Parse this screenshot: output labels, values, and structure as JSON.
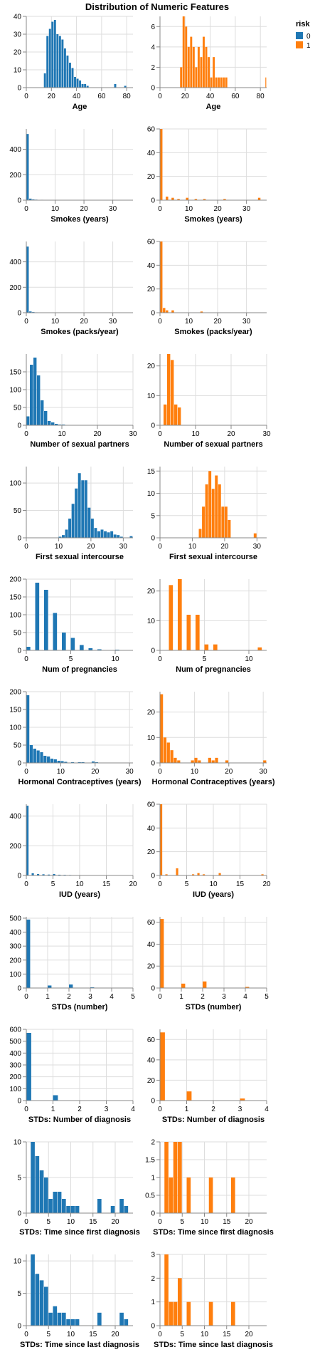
{
  "title": "Distribution of Numeric Features",
  "legend": {
    "title": "risk",
    "items": [
      {
        "label": "0",
        "color": "#1f77b4"
      },
      {
        "label": "1",
        "color": "#ff7f0e"
      }
    ]
  },
  "chart_data": [
    {
      "type": "bar",
      "feature": "Age",
      "risk": "0",
      "xlabel": "Age",
      "xlim": [
        0,
        85
      ],
      "xticks": [
        0,
        20,
        40,
        60,
        80
      ],
      "ylim": [
        0,
        40
      ],
      "yticks": [
        0,
        10,
        20,
        30,
        40
      ],
      "bin_width": 2,
      "x": [
        14,
        16,
        18,
        20,
        22,
        24,
        26,
        28,
        30,
        32,
        34,
        36,
        38,
        40,
        42,
        44,
        46,
        48,
        70,
        78
      ],
      "values": [
        8,
        29,
        33,
        37,
        38,
        30,
        29,
        27,
        22,
        18,
        14,
        11,
        6,
        5,
        4,
        2,
        2,
        1,
        2,
        1
      ]
    },
    {
      "type": "bar",
      "feature": "Age",
      "risk": "1",
      "xlabel": "Age",
      "xlim": [
        0,
        85
      ],
      "xticks": [
        0,
        20,
        40,
        60,
        80
      ],
      "ylim": [
        0,
        7
      ],
      "yticks": [
        0,
        2,
        4,
        6
      ],
      "bin_width": 2,
      "x": [
        16,
        18,
        20,
        22,
        24,
        26,
        28,
        30,
        32,
        34,
        36,
        38,
        40,
        42,
        44,
        46,
        48,
        50,
        52,
        84
      ],
      "values": [
        2,
        7,
        6,
        4,
        5,
        4,
        2,
        4,
        3,
        5,
        4,
        3,
        1,
        3,
        1,
        1,
        1,
        1,
        1,
        1
      ]
    },
    {
      "type": "bar",
      "feature": "Smokes (years)",
      "risk": "0",
      "xlabel": "Smokes (years)",
      "xlim": [
        0,
        37
      ],
      "xticks": [
        0,
        10,
        20,
        30
      ],
      "ylim": [
        0,
        560
      ],
      "yticks": [
        0,
        200,
        400
      ],
      "bin_width": 1,
      "x": [
        0,
        1,
        2,
        3,
        5,
        10
      ],
      "values": [
        520,
        12,
        6,
        4,
        3,
        2
      ]
    },
    {
      "type": "bar",
      "feature": "Smokes (years)",
      "risk": "1",
      "xlabel": "Smokes (years)",
      "xlim": [
        0,
        37
      ],
      "xticks": [
        0,
        10,
        20,
        30
      ],
      "ylim": [
        0,
        60
      ],
      "yticks": [
        0,
        20,
        40,
        60
      ],
      "bin_width": 1,
      "x": [
        0,
        2,
        4,
        6,
        9,
        12,
        15,
        22,
        34
      ],
      "values": [
        60,
        3,
        2,
        1,
        2,
        1,
        1,
        1,
        2
      ]
    },
    {
      "type": "bar",
      "feature": "Smokes (packs/year)",
      "risk": "0",
      "xlabel": "Smokes (packs/year)",
      "xlim": [
        0,
        37
      ],
      "xticks": [
        0,
        10,
        20,
        30
      ],
      "ylim": [
        0,
        560
      ],
      "yticks": [
        0,
        200,
        400
      ],
      "bin_width": 1,
      "x": [
        0,
        1,
        2,
        3,
        5
      ],
      "values": [
        520,
        10,
        5,
        3,
        2
      ]
    },
    {
      "type": "bar",
      "feature": "Smokes (packs/year)",
      "risk": "1",
      "xlabel": "Smokes (packs/year)",
      "xlim": [
        0,
        37
      ],
      "xticks": [
        0,
        10,
        20,
        30
      ],
      "ylim": [
        0,
        60
      ],
      "yticks": [
        0,
        20,
        40,
        60
      ],
      "bin_width": 1,
      "x": [
        0,
        1,
        2,
        4,
        14
      ],
      "values": [
        60,
        4,
        2,
        2,
        1
      ]
    },
    {
      "type": "bar",
      "feature": "Number of sexual partners",
      "risk": "0",
      "xlabel": "Number of sexual partners",
      "xlim": [
        0,
        30
      ],
      "xticks": [
        0,
        10,
        20,
        30
      ],
      "ylim": [
        0,
        200
      ],
      "yticks": [
        0,
        50,
        100,
        150
      ],
      "bin_width": 1,
      "x": [
        0,
        1,
        2,
        3,
        4,
        5,
        6,
        7,
        8,
        9,
        10,
        14,
        28
      ],
      "values": [
        25,
        170,
        190,
        140,
        70,
        40,
        12,
        8,
        4,
        2,
        2,
        1,
        1
      ]
    },
    {
      "type": "bar",
      "feature": "Number of sexual partners",
      "risk": "1",
      "xlabel": "Number of sexual partners",
      "xlim": [
        0,
        30
      ],
      "xticks": [
        0,
        10,
        20,
        30
      ],
      "ylim": [
        0,
        24
      ],
      "yticks": [
        0,
        10,
        20
      ],
      "bin_width": 1,
      "x": [
        1,
        2,
        3,
        4,
        5
      ],
      "values": [
        7,
        24,
        22,
        7,
        6
      ]
    },
    {
      "type": "bar",
      "feature": "First sexual intercourse",
      "risk": "0",
      "xlabel": "First sexual intercourse",
      "xlim": [
        0,
        33
      ],
      "xticks": [
        0,
        10,
        20,
        30
      ],
      "ylim": [
        0,
        130
      ],
      "yticks": [
        0,
        50,
        100
      ],
      "bin_width": 1,
      "x": [
        10,
        11,
        12,
        13,
        14,
        15,
        16,
        17,
        18,
        19,
        20,
        21,
        22,
        23,
        24,
        25,
        26,
        27,
        28,
        29,
        32
      ],
      "values": [
        2,
        5,
        15,
        35,
        62,
        90,
        118,
        105,
        105,
        55,
        35,
        18,
        12,
        15,
        12,
        10,
        12,
        6,
        5,
        2,
        3
      ]
    },
    {
      "type": "bar",
      "feature": "First sexual intercourse",
      "risk": "1",
      "xlabel": "First sexual intercourse",
      "xlim": [
        0,
        33
      ],
      "xticks": [
        0,
        10,
        20,
        30
      ],
      "ylim": [
        0,
        16
      ],
      "yticks": [
        0,
        5,
        10,
        15
      ],
      "bin_width": 1,
      "x": [
        12,
        13,
        14,
        15,
        16,
        17,
        18,
        19,
        20,
        21,
        29
      ],
      "values": [
        2,
        7,
        12,
        15,
        11,
        14,
        12,
        7,
        7,
        4,
        1
      ]
    },
    {
      "type": "bar",
      "feature": "Num of pregnancies",
      "risk": "0",
      "xlabel": "Num of pregnancies",
      "xlim": [
        0,
        12
      ],
      "xticks": [
        0,
        5,
        10
      ],
      "ylim": [
        0,
        200
      ],
      "yticks": [
        0,
        50,
        100,
        150,
        200
      ],
      "bin_width": 0.5,
      "x": [
        0,
        1,
        2,
        3,
        4,
        5,
        6,
        7,
        8,
        10
      ],
      "values": [
        10,
        190,
        170,
        105,
        50,
        35,
        15,
        6,
        3,
        2
      ]
    },
    {
      "type": "bar",
      "feature": "Num of pregnancies",
      "risk": "1",
      "xlabel": "Num of pregnancies",
      "xlim": [
        0,
        12
      ],
      "xticks": [
        0,
        5,
        10
      ],
      "ylim": [
        0,
        24
      ],
      "yticks": [
        0,
        10,
        20
      ],
      "bin_width": 0.5,
      "x": [
        1,
        2,
        3,
        4,
        5,
        6,
        11
      ],
      "values": [
        22,
        24,
        12,
        12,
        2,
        2,
        1
      ]
    },
    {
      "type": "bar",
      "feature": "Hormonal Contraceptives (years)",
      "risk": "0",
      "xlabel": "Hormonal Contraceptives (years)",
      "xlim": [
        0,
        31
      ],
      "xticks": [
        0,
        10,
        20,
        30
      ],
      "ylim": [
        0,
        200
      ],
      "yticks": [
        0,
        50,
        100,
        150,
        200
      ],
      "bin_width": 1,
      "x": [
        0,
        1,
        2,
        3,
        4,
        5,
        6,
        7,
        8,
        9,
        10,
        11,
        13,
        15,
        16,
        19,
        20,
        22,
        29
      ],
      "values": [
        190,
        50,
        40,
        35,
        30,
        20,
        18,
        12,
        10,
        6,
        5,
        3,
        2,
        2,
        2,
        4,
        2,
        1,
        1
      ]
    },
    {
      "type": "bar",
      "feature": "Hormonal Contraceptives (years)",
      "risk": "1",
      "xlabel": "Hormonal Contraceptives (years)",
      "xlim": [
        0,
        31
      ],
      "xticks": [
        0,
        10,
        20,
        30
      ],
      "ylim": [
        0,
        28
      ],
      "yticks": [
        0,
        10,
        20
      ],
      "bin_width": 1,
      "x": [
        0,
        1,
        2,
        3,
        4,
        5,
        9,
        10,
        11,
        14,
        15,
        16,
        19,
        30
      ],
      "values": [
        27,
        10,
        8,
        5,
        2,
        1,
        1,
        2,
        1,
        2,
        1,
        2,
        1,
        1
      ]
    },
    {
      "type": "bar",
      "feature": "IUD (years)",
      "risk": "0",
      "xlabel": "IUD (years)",
      "xlim": [
        0,
        20
      ],
      "xticks": [
        0,
        5,
        10,
        15,
        20
      ],
      "ylim": [
        0,
        480
      ],
      "yticks": [
        0,
        200,
        400
      ],
      "bin_width": 0.5,
      "x": [
        0,
        1,
        2,
        3,
        4,
        5,
        6,
        7,
        8,
        9,
        10,
        11,
        12,
        19
      ],
      "values": [
        470,
        15,
        10,
        8,
        6,
        10,
        5,
        4,
        3,
        2,
        2,
        1,
        1,
        1
      ]
    },
    {
      "type": "bar",
      "feature": "IUD (years)",
      "risk": "1",
      "xlabel": "IUD (years)",
      "xlim": [
        0,
        20
      ],
      "xticks": [
        0,
        5,
        10,
        15,
        20
      ],
      "ylim": [
        0,
        60
      ],
      "yticks": [
        0,
        20,
        40,
        60
      ],
      "bin_width": 0.5,
      "x": [
        0,
        1,
        3,
        6,
        7,
        8,
        11,
        19
      ],
      "values": [
        60,
        1,
        6,
        1,
        2,
        1,
        2,
        1
      ]
    },
    {
      "type": "bar",
      "feature": "STDs (number)",
      "risk": "0",
      "xlabel": "STDs (number)",
      "xlim": [
        0,
        5
      ],
      "xticks": [
        0,
        1,
        2,
        3,
        4,
        5
      ],
      "ylim": [
        0,
        510
      ],
      "yticks": [
        0,
        100,
        200,
        300,
        400,
        500
      ],
      "bin_width": 0.2,
      "x": [
        0,
        1,
        2,
        3
      ],
      "values": [
        490,
        18,
        25,
        5
      ]
    },
    {
      "type": "bar",
      "feature": "STDs (number)",
      "risk": "1",
      "xlabel": "STDs (number)",
      "xlim": [
        0,
        5
      ],
      "xticks": [
        0,
        1,
        2,
        3,
        4,
        5
      ],
      "ylim": [
        0,
        65
      ],
      "yticks": [
        0,
        20,
        40,
        60
      ],
      "bin_width": 0.2,
      "x": [
        0,
        1,
        2,
        4
      ],
      "values": [
        63,
        4,
        6,
        1
      ]
    },
    {
      "type": "bar",
      "feature": "STDs: Number of diagnosis",
      "risk": "0",
      "xlabel": "STDs: Number of diagnosis",
      "xlim": [
        0,
        4
      ],
      "xticks": [
        0,
        1,
        2,
        3,
        4
      ],
      "ylim": [
        0,
        600
      ],
      "yticks": [
        0,
        100,
        200,
        300,
        400,
        500,
        600
      ],
      "bin_width": 0.2,
      "x": [
        0,
        1
      ],
      "values": [
        570,
        45
      ]
    },
    {
      "type": "bar",
      "feature": "STDs: Number of diagnosis",
      "risk": "1",
      "xlabel": "STDs: Number of diagnosis",
      "xlim": [
        0,
        4
      ],
      "xticks": [
        0,
        1,
        2,
        3,
        4
      ],
      "ylim": [
        0,
        70
      ],
      "yticks": [
        0,
        20,
        40,
        60
      ],
      "bin_width": 0.2,
      "x": [
        0,
        1,
        3
      ],
      "values": [
        67,
        9,
        2
      ]
    },
    {
      "type": "bar",
      "feature": "STDs: Time since first diagnosis",
      "risk": "0",
      "xlabel": "STDs: Time since first diagnosis",
      "xlim": [
        0,
        24
      ],
      "xticks": [
        0,
        5,
        10,
        15,
        20
      ],
      "ylim": [
        0,
        10
      ],
      "yticks": [
        0,
        5,
        10
      ],
      "bin_width": 1,
      "x": [
        1,
        2,
        3,
        4,
        5,
        6,
        7,
        8,
        9,
        10,
        11,
        16,
        19,
        21,
        22
      ],
      "values": [
        10,
        8,
        6,
        5,
        2,
        3,
        3,
        2,
        1,
        1,
        1,
        2,
        1,
        2,
        1
      ]
    },
    {
      "type": "bar",
      "feature": "STDs: Time since first diagnosis",
      "risk": "1",
      "xlabel": "STDs: Time since first diagnosis",
      "xlim": [
        0,
        24
      ],
      "xticks": [
        0,
        5,
        10,
        15,
        20
      ],
      "ylim": [
        0,
        2
      ],
      "yticks": [
        0,
        0.5,
        1,
        1.5,
        2
      ],
      "bin_width": 1,
      "x": [
        1,
        2,
        3,
        4,
        6,
        11,
        16
      ],
      "values": [
        2,
        1,
        2,
        2,
        1,
        1,
        1
      ]
    },
    {
      "type": "bar",
      "feature": "STDs: Time since last diagnosis",
      "risk": "0",
      "xlabel": "STDs: Time since last diagnosis",
      "xlim": [
        0,
        24
      ],
      "xticks": [
        0,
        5,
        10,
        15,
        20
      ],
      "ylim": [
        0,
        11
      ],
      "yticks": [
        0,
        5,
        10
      ],
      "bin_width": 1,
      "x": [
        1,
        2,
        3,
        4,
        5,
        6,
        7,
        8,
        9,
        10,
        11,
        16,
        21,
        22
      ],
      "values": [
        11,
        8,
        7,
        6,
        2,
        3,
        2,
        2,
        1,
        1,
        1,
        2,
        2,
        1
      ]
    },
    {
      "type": "bar",
      "feature": "STDs: Time since last diagnosis",
      "risk": "1",
      "xlabel": "STDs: Time since last diagnosis",
      "xlim": [
        0,
        24
      ],
      "xticks": [
        0,
        5,
        10,
        15,
        20
      ],
      "ylim": [
        0,
        3
      ],
      "yticks": [
        0,
        1,
        2,
        3
      ],
      "bin_width": 1,
      "x": [
        1,
        2,
        3,
        4,
        6,
        11,
        16
      ],
      "values": [
        3,
        1,
        1,
        2,
        1,
        1,
        1
      ]
    }
  ]
}
